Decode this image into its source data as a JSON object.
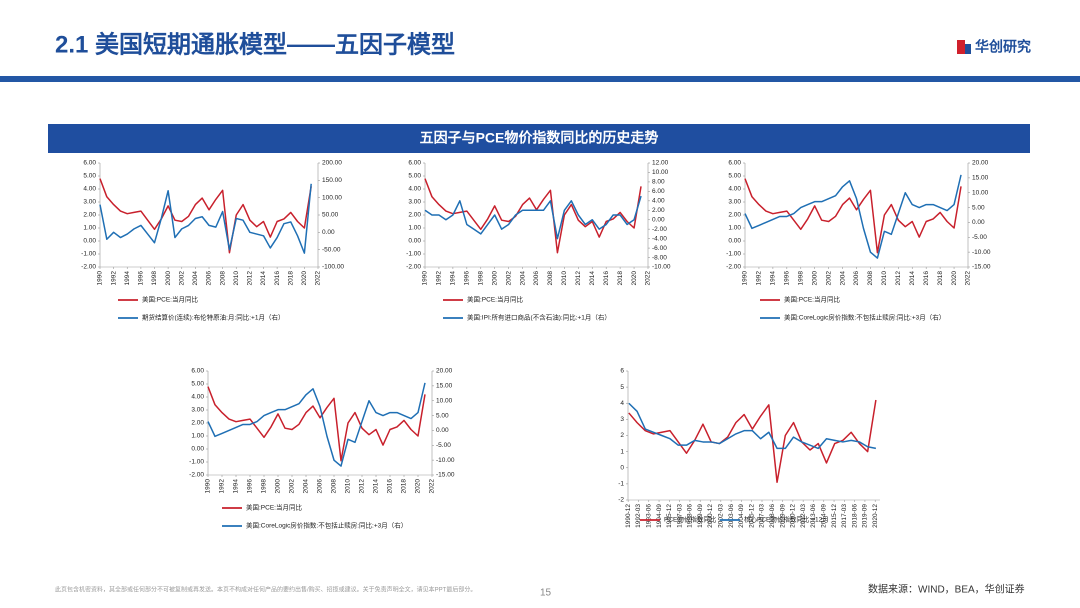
{
  "header": {
    "title": "2.1 美国短期通胀模型——五因子模型",
    "logo": "华创研究"
  },
  "banner": "五因子与PCE物价指数同比的历史走势",
  "chart_data": [
    {
      "type": "line",
      "x": [
        1990,
        1991,
        1992,
        1993,
        1994,
        1995,
        1996,
        1997,
        1998,
        1999,
        2000,
        2001,
        2002,
        2003,
        2004,
        2005,
        2006,
        2007,
        2008,
        2009,
        2010,
        2011,
        2012,
        2013,
        2014,
        2015,
        2016,
        2017,
        2018,
        2019,
        2020,
        2021
      ],
      "xlim": [
        1990,
        2022
      ],
      "xticks": [
        1990,
        1992,
        1994,
        1996,
        1998,
        2000,
        2002,
        2004,
        2006,
        2008,
        2010,
        2012,
        2014,
        2016,
        2018,
        2020,
        2022
      ],
      "ylim": [
        -2,
        6
      ],
      "yticks": [
        {
          "value": -2,
          "label": "-2.00"
        },
        {
          "value": -1,
          "label": "-1.00"
        },
        {
          "value": 0,
          "label": "0.00"
        },
        {
          "value": 1,
          "label": "1.00"
        },
        {
          "value": 2,
          "label": "2.00"
        },
        {
          "value": 3,
          "label": "3.00"
        },
        {
          "value": 4,
          "label": "4.00"
        },
        {
          "value": 5,
          "label": "5.00"
        },
        {
          "value": 6,
          "label": "6.00"
        }
      ],
      "y2lim": [
        -100,
        200
      ],
      "y2ticks": [
        {
          "value": -100,
          "label": "-100.00"
        },
        {
          "value": -50,
          "label": "-50.00"
        },
        {
          "value": 0,
          "label": "0.00"
        },
        {
          "value": 50,
          "label": "50.00"
        },
        {
          "value": 100,
          "label": "100.00"
        },
        {
          "value": 150,
          "label": "150.00"
        },
        {
          "value": 200,
          "label": "200.00"
        }
      ],
      "series": [
        {
          "name": "美国:PCE:当月同比",
          "color": "#c8202c",
          "values": [
            4.8,
            3.4,
            2.8,
            2.3,
            2.1,
            2.2,
            2.3,
            1.6,
            0.9,
            1.7,
            2.7,
            1.6,
            1.5,
            1.9,
            2.8,
            3.3,
            2.4,
            3.2,
            3.9,
            -0.9,
            2.0,
            2.8,
            1.6,
            1.1,
            1.5,
            0.3,
            1.5,
            1.7,
            2.2,
            1.5,
            1.0,
            4.2
          ]
        },
        {
          "name": "期货结算价(连续):布伦特原油:月:同比:+1月（右）",
          "color": "#1f6fb4",
          "axis": "y2",
          "values": [
            80,
            -20,
            0,
            -15,
            -5,
            10,
            20,
            -5,
            -30,
            40,
            120,
            -15,
            10,
            20,
            40,
            45,
            20,
            15,
            60,
            -50,
            40,
            35,
            0,
            -5,
            -10,
            -45,
            -15,
            25,
            30,
            -10,
            -60,
            140
          ]
        }
      ]
    },
    {
      "type": "line",
      "x": [
        1990,
        1991,
        1992,
        1993,
        1994,
        1995,
        1996,
        1997,
        1998,
        1999,
        2000,
        2001,
        2002,
        2003,
        2004,
        2005,
        2006,
        2007,
        2008,
        2009,
        2010,
        2011,
        2012,
        2013,
        2014,
        2015,
        2016,
        2017,
        2018,
        2019,
        2020,
        2021
      ],
      "xlim": [
        1990,
        2022
      ],
      "xticks": [
        1990,
        1992,
        1994,
        1996,
        1998,
        2000,
        2002,
        2004,
        2006,
        2008,
        2010,
        2012,
        2014,
        2016,
        2018,
        2020,
        2022
      ],
      "ylim": [
        -2,
        6
      ],
      "yticks": [
        {
          "value": -2,
          "label": "-2.00"
        },
        {
          "value": -1,
          "label": "-1.00"
        },
        {
          "value": 0,
          "label": "0.00"
        },
        {
          "value": 1,
          "label": "1.00"
        },
        {
          "value": 2,
          "label": "2.00"
        },
        {
          "value": 3,
          "label": "3.00"
        },
        {
          "value": 4,
          "label": "4.00"
        },
        {
          "value": 5,
          "label": "5.00"
        },
        {
          "value": 6,
          "label": "6.00"
        }
      ],
      "y2lim": [
        -10,
        12
      ],
      "y2ticks": [
        {
          "value": -10,
          "label": "-10.00"
        },
        {
          "value": -8,
          "label": "-8.00"
        },
        {
          "value": -6,
          "label": "-6.00"
        },
        {
          "value": -4,
          "label": "-4.00"
        },
        {
          "value": -2,
          "label": "-2.00"
        },
        {
          "value": 0,
          "label": "0.00"
        },
        {
          "value": 2,
          "label": "2.00"
        },
        {
          "value": 4,
          "label": "4.00"
        },
        {
          "value": 6,
          "label": "6.00"
        },
        {
          "value": 8,
          "label": "8.00"
        },
        {
          "value": 10,
          "label": "10.00"
        },
        {
          "value": 12,
          "label": "12.00"
        }
      ],
      "series": [
        {
          "name": "美国:PCE:当月同比",
          "color": "#c8202c",
          "values": [
            4.8,
            3.4,
            2.8,
            2.3,
            2.1,
            2.2,
            2.3,
            1.6,
            0.9,
            1.7,
            2.7,
            1.6,
            1.5,
            1.9,
            2.8,
            3.3,
            2.4,
            3.2,
            3.9,
            -0.9,
            2.0,
            2.8,
            1.6,
            1.1,
            1.5,
            0.3,
            1.5,
            1.7,
            2.2,
            1.5,
            1.0,
            4.2
          ]
        },
        {
          "name": "美国:IPI:所有进口商品(不含石油):同比:+1月（右）",
          "color": "#1f6fb4",
          "axis": "y2",
          "values": [
            2,
            1,
            1,
            0,
            1,
            4,
            -1,
            -2,
            -3,
            -1,
            1,
            -2,
            -1,
            1,
            2,
            2,
            2,
            2,
            4,
            -4,
            2,
            4,
            1,
            -1,
            0,
            -2,
            -1,
            1,
            1,
            -1,
            0,
            5
          ]
        }
      ]
    },
    {
      "type": "line",
      "x": [
        1990,
        1991,
        1992,
        1993,
        1994,
        1995,
        1996,
        1997,
        1998,
        1999,
        2000,
        2001,
        2002,
        2003,
        2004,
        2005,
        2006,
        2007,
        2008,
        2009,
        2010,
        2011,
        2012,
        2013,
        2014,
        2015,
        2016,
        2017,
        2018,
        2019,
        2020,
        2021
      ],
      "xlim": [
        1990,
        2022
      ],
      "xticks": [
        1990,
        1992,
        1994,
        1996,
        1998,
        2000,
        2002,
        2004,
        2006,
        2008,
        2010,
        2012,
        2014,
        2016,
        2018,
        2020,
        2022
      ],
      "ylim": [
        -2,
        6
      ],
      "yticks": [
        {
          "value": -2,
          "label": "-2.00"
        },
        {
          "value": -1,
          "label": "-1.00"
        },
        {
          "value": 0,
          "label": "0.00"
        },
        {
          "value": 1,
          "label": "1.00"
        },
        {
          "value": 2,
          "label": "2.00"
        },
        {
          "value": 3,
          "label": "3.00"
        },
        {
          "value": 4,
          "label": "4.00"
        },
        {
          "value": 5,
          "label": "5.00"
        },
        {
          "value": 6,
          "label": "6.00"
        }
      ],
      "y2lim": [
        -15,
        20
      ],
      "y2ticks": [
        {
          "value": -15,
          "label": "-15.00"
        },
        {
          "value": -10,
          "label": "-10.00"
        },
        {
          "value": -5,
          "label": "-5.00"
        },
        {
          "value": 0,
          "label": "0.00"
        },
        {
          "value": 5,
          "label": "5.00"
        },
        {
          "value": 10,
          "label": "10.00"
        },
        {
          "value": 15,
          "label": "15.00"
        },
        {
          "value": 20,
          "label": "20.00"
        }
      ],
      "series": [
        {
          "name": "美国:PCE:当月同比",
          "color": "#c8202c",
          "values": [
            4.8,
            3.4,
            2.8,
            2.3,
            2.1,
            2.2,
            2.3,
            1.6,
            0.9,
            1.7,
            2.7,
            1.6,
            1.5,
            1.9,
            2.8,
            3.3,
            2.4,
            3.2,
            3.9,
            -0.9,
            2.0,
            2.8,
            1.6,
            1.1,
            1.5,
            0.3,
            1.5,
            1.7,
            2.2,
            1.5,
            1.0,
            4.2
          ]
        },
        {
          "name": "美国:CoreLogic房价指数:不包括止赎房:同比:+3月（右）",
          "color": "#1f6fb4",
          "axis": "y2",
          "values": [
            3,
            -2,
            -1,
            0,
            1,
            2,
            2,
            3,
            5,
            6,
            7,
            7,
            8,
            9,
            12,
            14,
            8,
            -2,
            -10,
            -12,
            -3,
            -4,
            3,
            10,
            6,
            5,
            6,
            6,
            5,
            4,
            6,
            16
          ]
        }
      ]
    },
    {
      "type": "line",
      "x": [
        1990,
        1991,
        1992,
        1993,
        1994,
        1995,
        1996,
        1997,
        1998,
        1999,
        2000,
        2001,
        2002,
        2003,
        2004,
        2005,
        2006,
        2007,
        2008,
        2009,
        2010,
        2011,
        2012,
        2013,
        2014,
        2015,
        2016,
        2017,
        2018,
        2019,
        2020,
        2021
      ],
      "xlim": [
        1990,
        2022
      ],
      "xticks": [
        1990,
        1992,
        1994,
        1996,
        1998,
        2000,
        2002,
        2004,
        2006,
        2008,
        2010,
        2012,
        2014,
        2016,
        2018,
        2020,
        2022
      ],
      "ylim": [
        -2,
        6
      ],
      "yticks": [
        {
          "value": -2,
          "label": "-2.00"
        },
        {
          "value": -1,
          "label": "-1.00"
        },
        {
          "value": 0,
          "label": "0.00"
        },
        {
          "value": 1,
          "label": "1.00"
        },
        {
          "value": 2,
          "label": "2.00"
        },
        {
          "value": 3,
          "label": "3.00"
        },
        {
          "value": 4,
          "label": "4.00"
        },
        {
          "value": 5,
          "label": "5.00"
        },
        {
          "value": 6,
          "label": "6.00"
        }
      ],
      "y2lim": [
        -15,
        20
      ],
      "y2ticks": [
        {
          "value": -15,
          "label": "-15.00"
        },
        {
          "value": -10,
          "label": "-10.00"
        },
        {
          "value": -5,
          "label": "-5.00"
        },
        {
          "value": 0,
          "label": "0.00"
        },
        {
          "value": 5,
          "label": "5.00"
        },
        {
          "value": 10,
          "label": "10.00"
        },
        {
          "value": 15,
          "label": "15.00"
        },
        {
          "value": 20,
          "label": "20.00"
        }
      ],
      "series": [
        {
          "name": "美国:PCE:当月同比",
          "color": "#c8202c",
          "values": [
            4.8,
            3.4,
            2.8,
            2.3,
            2.1,
            2.2,
            2.3,
            1.6,
            0.9,
            1.7,
            2.7,
            1.6,
            1.5,
            1.9,
            2.8,
            3.3,
            2.4,
            3.2,
            3.9,
            -0.9,
            2.0,
            2.8,
            1.6,
            1.1,
            1.5,
            0.3,
            1.5,
            1.7,
            2.2,
            1.5,
            1.0,
            4.2
          ]
        },
        {
          "name": "美国:CoreLogic房价指数:不包括止赎房:同比:+3月（右）",
          "color": "#1f6fb4",
          "axis": "y2",
          "values": [
            3,
            -2,
            -1,
            0,
            1,
            2,
            2,
            3,
            5,
            6,
            7,
            7,
            8,
            9,
            12,
            14,
            8,
            -2,
            -10,
            -12,
            -3,
            -4,
            3,
            10,
            6,
            5,
            6,
            6,
            5,
            4,
            6,
            16
          ]
        }
      ]
    },
    {
      "type": "line",
      "x": [
        1991,
        1992,
        1993,
        1994,
        1995,
        1996,
        1997,
        1998,
        1999,
        2000,
        2001,
        2002,
        2003,
        2004,
        2005,
        2006,
        2007,
        2008,
        2009,
        2010,
        2011,
        2012,
        2013,
        2014,
        2015,
        2016,
        2017,
        2018,
        2019,
        2020,
        2021
      ],
      "xlim": [
        1990.9,
        2021.5
      ],
      "xticks": [
        {
          "value": 1990.92,
          "label": "1990-12"
        },
        {
          "value": 1992.17,
          "label": "1992-03"
        },
        {
          "value": 1993.42,
          "label": "1993-06"
        },
        {
          "value": 1994.67,
          "label": "1994-09"
        },
        {
          "value": 1995.92,
          "label": "1995-12"
        },
        {
          "value": 1997.17,
          "label": "1997-03"
        },
        {
          "value": 1998.42,
          "label": "1998-06"
        },
        {
          "value": 1999.67,
          "label": "1999-09"
        },
        {
          "value": 2000.92,
          "label": "2000-12"
        },
        {
          "value": 2002.17,
          "label": "2002-03"
        },
        {
          "value": 2003.42,
          "label": "2003-06"
        },
        {
          "value": 2004.67,
          "label": "2004-09"
        },
        {
          "value": 2005.92,
          "label": "2005-12"
        },
        {
          "value": 2007.17,
          "label": "2007-03"
        },
        {
          "value": 2008.42,
          "label": "2008-06"
        },
        {
          "value": 2009.67,
          "label": "2009-09"
        },
        {
          "value": 2010.92,
          "label": "2010-12"
        },
        {
          "value": 2012.17,
          "label": "2012-03"
        },
        {
          "value": 2013.42,
          "label": "2013-06"
        },
        {
          "value": 2014.67,
          "label": "2014-09"
        },
        {
          "value": 2015.92,
          "label": "2015-12"
        },
        {
          "value": 2017.17,
          "label": "2017-03"
        },
        {
          "value": 2018.42,
          "label": "2018-06"
        },
        {
          "value": 2019.67,
          "label": "2019-09"
        },
        {
          "value": 2020.92,
          "label": "2020-12"
        }
      ],
      "ylim": [
        -2,
        6
      ],
      "yticks": [
        -2,
        -1,
        0,
        1,
        2,
        3,
        4,
        5,
        6
      ],
      "series": [
        {
          "name": "PCE物价指数同比",
          "color": "#c8202c",
          "values": [
            3.4,
            2.8,
            2.3,
            2.1,
            2.2,
            2.3,
            1.6,
            0.9,
            1.7,
            2.7,
            1.6,
            1.5,
            1.9,
            2.8,
            3.3,
            2.4,
            3.2,
            3.9,
            -0.9,
            2.0,
            2.8,
            1.6,
            1.1,
            1.5,
            0.3,
            1.5,
            1.7,
            2.2,
            1.5,
            1.0,
            4.2
          ]
        },
        {
          "name": "核心PCE物价指数同比:+12月",
          "color": "#1f6fb4",
          "values": [
            4.0,
            3.5,
            2.4,
            2.2,
            2.0,
            1.8,
            1.4,
            1.4,
            1.7,
            1.6,
            1.6,
            1.5,
            1.8,
            2.1,
            2.3,
            2.3,
            1.8,
            2.2,
            1.2,
            1.2,
            1.9,
            1.6,
            1.4,
            1.2,
            1.8,
            1.7,
            1.6,
            1.7,
            1.6,
            1.3,
            1.2
          ]
        }
      ]
    }
  ],
  "footer": {
    "disclaimer": "此页包含机密资料，其全部或任何部分不可被复制或再发送。本页不构成对任何产品的要约出售/购买、招揽或建议。关于免责声明全文，请见本PPT最后部分。",
    "page": "15",
    "source": "数据来源：WIND，BEA，华创证券"
  }
}
